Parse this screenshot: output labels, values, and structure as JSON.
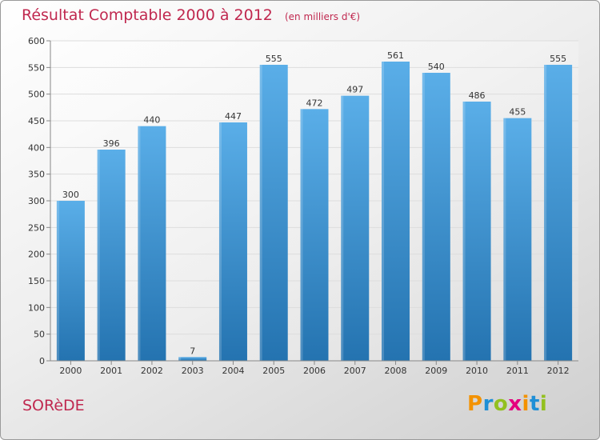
{
  "header": {
    "title": "Résultat Comptable 2000 à 2012",
    "subtitle": "(en milliers d'€)"
  },
  "footer": {
    "place": "SORèDE",
    "logo": {
      "text": "Proxiti",
      "letters": [
        {
          "char": "P",
          "color": "#f39200"
        },
        {
          "char": "r",
          "color": "#1f8fd6"
        },
        {
          "char": "o",
          "color": "#93c01f"
        },
        {
          "char": "x",
          "color": "#e5007e"
        },
        {
          "char": "i",
          "color": "#f39200"
        },
        {
          "char": "t",
          "color": "#1f8fd6"
        },
        {
          "char": "i",
          "color": "#93c01f"
        }
      ]
    }
  },
  "colors": {
    "bar_top": "#5aaee8",
    "bar_bottom": "#2473b0",
    "grid": "#dddddd",
    "axis": "#888888",
    "text": "#333333",
    "title": "#c0284f"
  },
  "chart_data": {
    "type": "bar",
    "title": "Résultat Comptable 2000 à 2012",
    "ylabel": "",
    "xlabel": "",
    "categories": [
      "2000",
      "2001",
      "2002",
      "2003",
      "2004",
      "2005",
      "2006",
      "2007",
      "2008",
      "2009",
      "2010",
      "2011",
      "2012"
    ],
    "values": [
      300,
      396,
      440,
      7,
      447,
      555,
      472,
      497,
      561,
      540,
      486,
      455,
      555
    ],
    "ylim": [
      0,
      600
    ],
    "yticks": [
      0,
      50,
      100,
      150,
      200,
      250,
      300,
      350,
      400,
      450,
      500,
      550,
      600
    ],
    "grid": true
  }
}
